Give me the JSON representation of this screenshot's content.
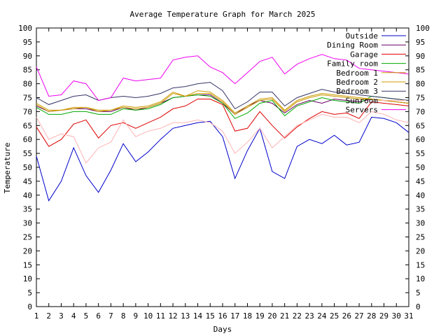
{
  "chart_data": {
    "type": "line",
    "title": "Average Temperature Graph for March 2025",
    "xlabel": "Days",
    "ylabel": "Temperature",
    "xlim": [
      1,
      31
    ],
    "ylim": [
      0,
      100
    ],
    "x_ticks": [
      1,
      2,
      3,
      4,
      5,
      6,
      7,
      8,
      9,
      10,
      11,
      12,
      13,
      14,
      15,
      16,
      17,
      18,
      19,
      20,
      21,
      22,
      23,
      24,
      25,
      26,
      27,
      28,
      29,
      30,
      31
    ],
    "y_ticks": [
      0,
      5,
      10,
      15,
      20,
      25,
      30,
      35,
      40,
      45,
      50,
      55,
      60,
      65,
      70,
      75,
      80,
      85,
      90,
      95,
      100
    ],
    "y_ticks_right": true,
    "grid": false,
    "legend_position": "top-right",
    "x": [
      1,
      2,
      3,
      4,
      5,
      6,
      7,
      8,
      9,
      10,
      11,
      12,
      13,
      14,
      15,
      16,
      17,
      18,
      19,
      20,
      21,
      22,
      23,
      24,
      25,
      26,
      27,
      28,
      29,
      30,
      31
    ],
    "series": [
      {
        "name": "Outside",
        "color": "#0000cc",
        "values": [
          54,
          38,
          45,
          57,
          47,
          41,
          49,
          58.5,
          52,
          55.5,
          60,
          64,
          65,
          66,
          66.5,
          61,
          46,
          56,
          64,
          48.5,
          46,
          57.5,
          60,
          58.5,
          61.5,
          58,
          59,
          68,
          67.5,
          66,
          62.5
        ]
      },
      {
        "name": "Dining Room",
        "color": "#660066",
        "values": [
          72,
          70,
          70.5,
          71,
          71,
          70,
          70,
          71.5,
          70.5,
          71.5,
          73,
          75,
          75.5,
          76,
          76,
          73,
          69,
          72,
          74,
          73,
          69.5,
          72.5,
          74,
          73,
          74.5,
          74,
          73.5,
          74.5,
          74,
          73.5,
          73
        ]
      },
      {
        "name": "Garage",
        "color": "#dd0000",
        "values": [
          64.5,
          57.5,
          60,
          65.5,
          67,
          60.5,
          65,
          66,
          64,
          66,
          68,
          71,
          72,
          74.5,
          74.5,
          72.5,
          63,
          64,
          70,
          65,
          60.5,
          64.5,
          67.5,
          70,
          69,
          69.5,
          67.5,
          73.5,
          73,
          72.5,
          72
        ]
      },
      {
        "name": "Family room",
        "color": "#00aa00",
        "values": [
          71.5,
          69,
          69,
          70,
          70,
          69,
          69,
          71,
          70.5,
          71,
          72.5,
          75,
          75.5,
          76,
          75.5,
          73,
          67.5,
          69.5,
          73,
          74,
          68.5,
          72,
          73.5,
          75,
          74,
          73.5,
          73,
          75.5,
          75,
          74.5,
          74
        ]
      },
      {
        "name": "Bedroom 1",
        "color": "#cc9900",
        "values": [
          73,
          70.5,
          70.5,
          71.5,
          71.5,
          70.5,
          70.5,
          72,
          71.5,
          72,
          73.5,
          77,
          75.5,
          77.5,
          77,
          74,
          69.5,
          72,
          74.5,
          75,
          70.5,
          74,
          75.5,
          76.5,
          76,
          75.5,
          75,
          74.5,
          74,
          73.5,
          73
        ]
      },
      {
        "name": "Bedroom 2",
        "color": "#cc9900",
        "values": [
          72.5,
          70,
          70.5,
          71,
          71.5,
          70,
          70.5,
          71.5,
          71,
          71.5,
          73,
          76.5,
          75.5,
          76.5,
          76.5,
          73.5,
          69,
          71.5,
          74,
          74.5,
          70,
          73.5,
          75,
          76,
          75.5,
          75,
          74.5,
          74.5,
          74,
          73.5,
          73
        ]
      },
      {
        "name": "Bedroom 3",
        "color": "#333366",
        "values": [
          75,
          72.5,
          74,
          75.5,
          76,
          74,
          75,
          75.5,
          75,
          75.5,
          76.5,
          78.5,
          79,
          80,
          80.5,
          77.5,
          71,
          73.5,
          77,
          77,
          72,
          75,
          76.5,
          78,
          77,
          76.5,
          76,
          75.5,
          75,
          74.5,
          74
        ]
      },
      {
        "name": "Sunroom",
        "color": "#ffb3b3",
        "values": [
          68,
          60,
          62,
          61,
          51.5,
          57,
          59,
          67,
          61,
          63,
          64,
          66,
          66,
          67,
          66,
          63,
          55,
          59,
          64,
          57,
          61,
          65,
          67,
          69,
          68,
          68,
          66,
          70,
          69,
          67,
          66
        ]
      },
      {
        "name": "Servers",
        "color": "#ee00ee",
        "values": [
          86,
          75.5,
          76,
          81,
          80,
          74,
          75,
          82,
          81,
          81.5,
          82,
          88.5,
          89.5,
          90,
          86,
          84,
          80,
          84,
          88,
          89.5,
          83.5,
          87,
          89,
          90.5,
          89,
          88.5,
          85.5,
          85,
          84.5,
          84,
          83.5
        ]
      }
    ]
  }
}
